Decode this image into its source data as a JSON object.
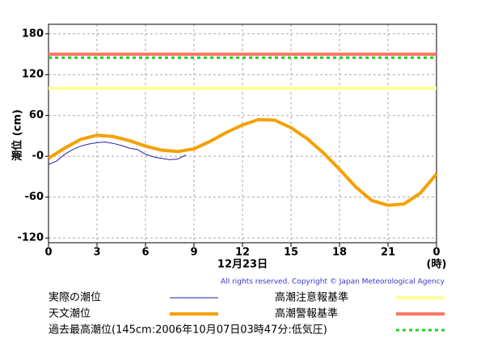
{
  "chart_data": {
    "type": "line",
    "y_label": "潮位 (cm)",
    "x_label": "12月23日",
    "x_unit": "(時)",
    "copyright": "All rights reserved. Copyright © Japan Meteorological Agency",
    "xlim": [
      0,
      24
    ],
    "xticks": [
      0,
      3,
      6,
      9,
      12,
      15,
      18,
      21,
      {
        "value": 24,
        "label": "0"
      }
    ],
    "ylim": [
      -127,
      194
    ],
    "yticks": [
      180,
      120,
      60,
      {
        "value": 0,
        "label": "-0"
      },
      -60,
      -120
    ],
    "grid": true,
    "series": [
      {
        "name": "実際の潮位",
        "color": "#2222aa",
        "width": 1,
        "x": [
          0,
          0.5,
          1,
          1.5,
          2,
          2.5,
          3,
          3.5,
          4,
          4.5,
          5,
          5.5,
          6,
          6.5,
          7,
          7.5,
          8,
          8.5
        ],
        "values": [
          -12,
          -7,
          3,
          10,
          15,
          18,
          20,
          21,
          19,
          16,
          12,
          10,
          3,
          -1,
          -3,
          -5,
          -4,
          2
        ]
      },
      {
        "name": "天文潮位",
        "color": "#f5a000",
        "width": 4,
        "x": [
          0,
          1,
          2,
          3,
          4,
          5,
          6,
          7,
          8,
          9,
          10,
          11,
          12,
          13,
          14,
          15,
          16,
          17,
          18,
          19,
          20,
          21,
          22,
          23,
          24
        ],
        "values": [
          -3,
          12,
          25,
          31,
          29,
          23,
          15,
          9,
          7,
          11,
          22,
          35,
          46,
          54,
          53,
          42,
          26,
          5,
          -19,
          -45,
          -65,
          -72,
          -70,
          -54,
          -26
        ]
      }
    ],
    "reference_lines": [
      {
        "name": "高潮注意報基準",
        "value": 100,
        "color": "#ffff99",
        "dashed": false
      },
      {
        "name": "高潮警報基準",
        "value": 150,
        "color": "#ff7766",
        "dashed": false
      },
      {
        "name": "過去最高潮位(145cm:2006年10月07日03時47分:低気圧)",
        "value": 145,
        "color": "#22cc22",
        "dashed": true
      }
    ]
  }
}
